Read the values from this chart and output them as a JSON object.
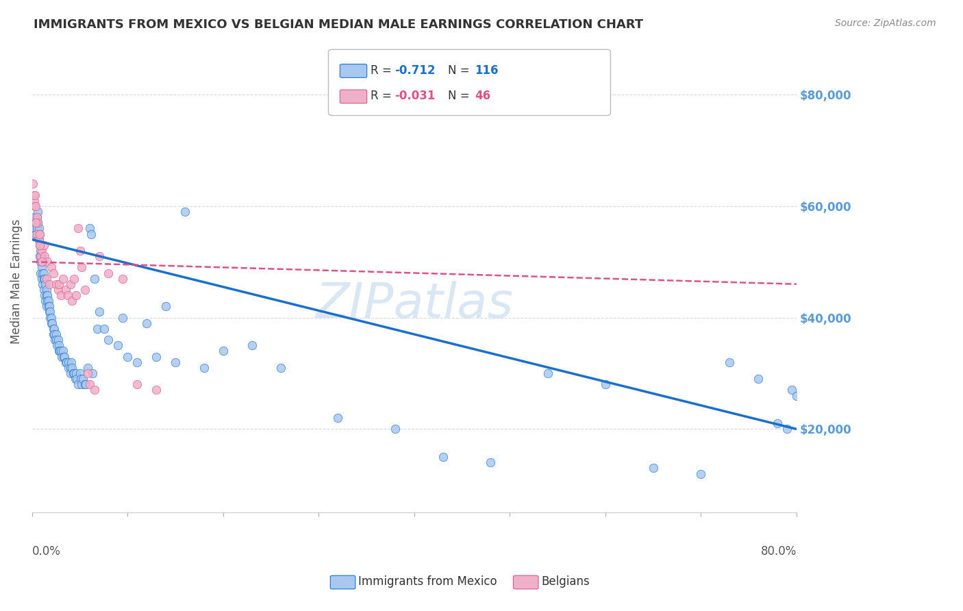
{
  "title": "IMMIGRANTS FROM MEXICO VS BELGIAN MEDIAN MALE EARNINGS CORRELATION CHART",
  "source": "Source: ZipAtlas.com",
  "ylabel": "Median Male Earnings",
  "yticks": [
    20000,
    40000,
    60000,
    80000
  ],
  "ytick_labels": [
    "$20,000",
    "$40,000",
    "$60,000",
    "$80,000"
  ],
  "xlim": [
    0.0,
    0.8
  ],
  "ylim": [
    5000,
    88000
  ],
  "series1_color": "#a8c8f0",
  "series2_color": "#f0b0c8",
  "trendline1_color": "#1a6fce",
  "trendline2_color": "#e05080",
  "blue_scatter_x": [
    0.002,
    0.003,
    0.004,
    0.004,
    0.005,
    0.005,
    0.006,
    0.006,
    0.007,
    0.007,
    0.008,
    0.008,
    0.008,
    0.009,
    0.009,
    0.009,
    0.01,
    0.01,
    0.01,
    0.011,
    0.011,
    0.011,
    0.012,
    0.012,
    0.012,
    0.013,
    0.013,
    0.014,
    0.014,
    0.015,
    0.015,
    0.015,
    0.016,
    0.016,
    0.017,
    0.017,
    0.018,
    0.018,
    0.019,
    0.019,
    0.02,
    0.02,
    0.021,
    0.022,
    0.022,
    0.023,
    0.023,
    0.024,
    0.025,
    0.025,
    0.026,
    0.027,
    0.028,
    0.028,
    0.029,
    0.03,
    0.031,
    0.032,
    0.033,
    0.034,
    0.035,
    0.036,
    0.038,
    0.038,
    0.04,
    0.04,
    0.041,
    0.042,
    0.043,
    0.044,
    0.045,
    0.046,
    0.047,
    0.048,
    0.05,
    0.051,
    0.052,
    0.053,
    0.055,
    0.056,
    0.06,
    0.062,
    0.065,
    0.068,
    0.07,
    0.075,
    0.08,
    0.09,
    0.1,
    0.11,
    0.13,
    0.15,
    0.18,
    0.23,
    0.32,
    0.38,
    0.43,
    0.48,
    0.54,
    0.6,
    0.65,
    0.7,
    0.73,
    0.76,
    0.78,
    0.79,
    0.795,
    0.8,
    0.058,
    0.063,
    0.2,
    0.26,
    0.095,
    0.12,
    0.14,
    0.16
  ],
  "blue_scatter_y": [
    58000,
    56000,
    57000,
    55000,
    56000,
    58000,
    57000,
    59000,
    54000,
    56000,
    55000,
    53000,
    51000,
    52000,
    50000,
    48000,
    51000,
    49000,
    47000,
    50000,
    48000,
    46000,
    48000,
    47000,
    45000,
    47000,
    44000,
    46000,
    43000,
    45000,
    44000,
    42000,
    44000,
    43000,
    43000,
    42000,
    42000,
    41000,
    41000,
    40000,
    40000,
    39000,
    39000,
    38000,
    37000,
    38000,
    37000,
    36000,
    37000,
    36000,
    35000,
    36000,
    35000,
    34000,
    34000,
    34000,
    33000,
    34000,
    33000,
    33000,
    32000,
    32000,
    32000,
    31000,
    31000,
    30000,
    32000,
    31000,
    30000,
    30000,
    29000,
    30000,
    29000,
    28000,
    30000,
    29000,
    28000,
    29000,
    28000,
    28000,
    56000,
    55000,
    47000,
    38000,
    41000,
    38000,
    36000,
    35000,
    33000,
    32000,
    33000,
    32000,
    31000,
    35000,
    22000,
    20000,
    15000,
    14000,
    30000,
    28000,
    13000,
    12000,
    32000,
    29000,
    21000,
    20000,
    27000,
    26000,
    31000,
    30000,
    34000,
    31000,
    40000,
    39000,
    42000,
    59000
  ],
  "pink_scatter_x": [
    0.001,
    0.002,
    0.002,
    0.003,
    0.003,
    0.004,
    0.005,
    0.005,
    0.006,
    0.007,
    0.008,
    0.009,
    0.01,
    0.012,
    0.013,
    0.015,
    0.016,
    0.018,
    0.02,
    0.022,
    0.025,
    0.027,
    0.028,
    0.03,
    0.032,
    0.035,
    0.037,
    0.04,
    0.042,
    0.044,
    0.046,
    0.048,
    0.05,
    0.052,
    0.055,
    0.058,
    0.06,
    0.065,
    0.07,
    0.08,
    0.095,
    0.11,
    0.13,
    0.008,
    0.004,
    0.01
  ],
  "pink_scatter_y": [
    64000,
    62000,
    61000,
    62000,
    60000,
    60000,
    58000,
    55000,
    57000,
    54000,
    55000,
    51000,
    52000,
    53000,
    51000,
    47000,
    50000,
    46000,
    49000,
    48000,
    46000,
    45000,
    46000,
    44000,
    47000,
    45000,
    44000,
    46000,
    43000,
    47000,
    44000,
    56000,
    52000,
    49000,
    45000,
    30000,
    28000,
    27000,
    51000,
    48000,
    47000,
    28000,
    27000,
    53000,
    57000,
    50000
  ],
  "trendline1_x": [
    0.0,
    0.8
  ],
  "trendline1_y": [
    54000,
    20000
  ],
  "trendline2_x": [
    0.0,
    0.8
  ],
  "trendline2_y": [
    50000,
    46000
  ],
  "background_color": "#ffffff",
  "title_color": "#333333",
  "source_color": "#888888",
  "axis_label_color": "#555555",
  "ytick_color": "#5b9bd5",
  "xtick_color": "#555555",
  "grid_color": "#d8d8d8",
  "watermark_color": "#c0d8ee",
  "legend_r1_color": "#1a6fce",
  "legend_r2_color": "#e05080",
  "legend_r1_text": "-0.712",
  "legend_r2_text": "-0.031",
  "legend_n1_text": "116",
  "legend_n2_text": "46"
}
